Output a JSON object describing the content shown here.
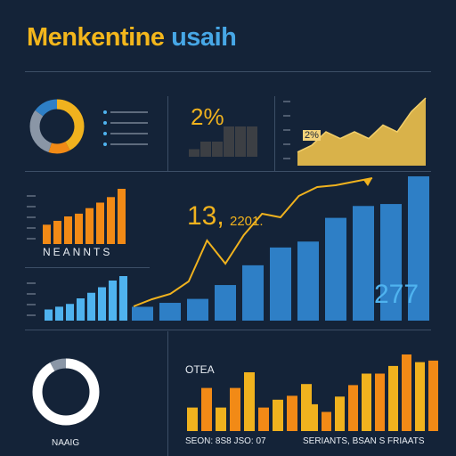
{
  "title": {
    "word1": "Menkentine",
    "word2": "usaih"
  },
  "colors": {
    "bg": "#142338",
    "orange": "#f28a16",
    "yellow": "#f0b21e",
    "blue": "#2e7fc6",
    "lightblue": "#4fb3ef",
    "gray": "#8a96a6",
    "white": "#ffffff"
  },
  "stats": {
    "pct": "2%",
    "pct_small": "2%",
    "big_left": "13,",
    "big_left_small": "2201.",
    "big_right": "277"
  },
  "labels": {
    "orange_panel": "NEANNTS",
    "donut2": "NAAIG",
    "bottom_title": "OTEA",
    "bottom_left": "SEON: 8S8 JSO: 07",
    "bottom_right": "SERIANTS, BSAN S FRIAATS"
  },
  "chart_data": [
    {
      "type": "pie",
      "values": [
        42,
        13,
        30,
        15
      ],
      "colors": [
        "#f0b21e",
        "#f28a16",
        "#8a96a6",
        "#2e7fc6"
      ]
    },
    {
      "type": "bar",
      "values": [
        2,
        4,
        4,
        8,
        8,
        8
      ],
      "color": "#3c3f44"
    },
    {
      "type": "area",
      "values": [
        2,
        3,
        5,
        4,
        5,
        4,
        6,
        5,
        8,
        10
      ],
      "color": "#d9b24a"
    },
    {
      "type": "bar",
      "values": [
        35,
        42,
        50,
        55,
        65,
        75,
        85,
        100
      ],
      "color": "#f28a16"
    },
    {
      "type": "bar",
      "values": [
        20,
        25,
        30,
        40,
        50,
        60,
        72,
        80
      ],
      "color": "#4fb3ef"
    },
    {
      "type": "bar",
      "values": [
        7,
        9,
        11,
        18,
        28,
        37,
        40,
        52,
        58,
        59,
        73
      ],
      "color": "#2e7fc6"
    },
    {
      "type": "line",
      "values": [
        8,
        12,
        15,
        22,
        45,
        32,
        48,
        60,
        58,
        70,
        75,
        76,
        78,
        80
      ],
      "color": "#f0b21e"
    },
    {
      "type": "pie",
      "values": [
        92,
        8
      ],
      "colors": [
        "#ffffff",
        "#8a96a6"
      ]
    },
    {
      "type": "bar",
      "values": [
        30,
        55,
        30,
        55,
        75,
        30,
        40,
        45,
        60
      ],
      "colors": [
        "#f0b21e",
        "#f28a16"
      ]
    },
    {
      "type": "bar",
      "values": [
        35,
        25,
        45,
        60,
        75,
        75,
        85,
        100,
        90,
        92
      ],
      "colors": [
        "#f0b21e",
        "#f28a16"
      ]
    }
  ]
}
